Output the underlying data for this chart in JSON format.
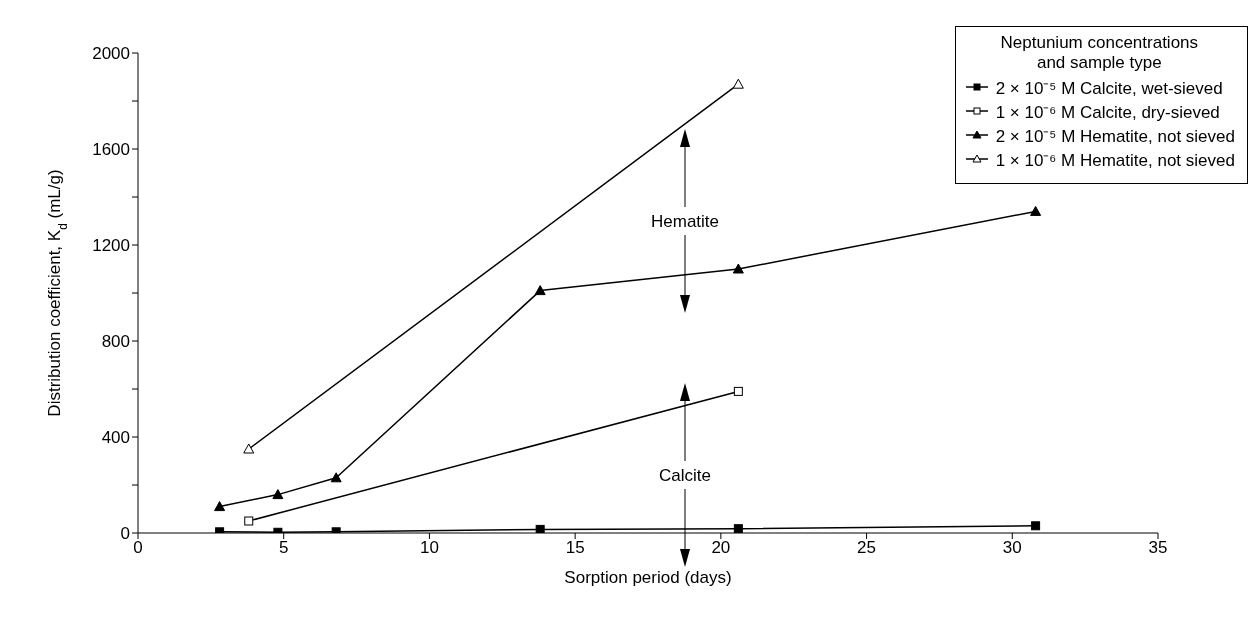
{
  "chart_data": {
    "type": "line",
    "xlabel": "Sorption period  (days)",
    "ylabel": "Distribution coefficient, K$_{d}$  (mL/g)",
    "legend_title": "Neptunium concentrations\nand sample type",
    "legend": "top right",
    "grid": false,
    "line_style": "solid",
    "xlim": [
      0,
      35
    ],
    "xticks": [
      0,
      5,
      10,
      15,
      20,
      25,
      30,
      35
    ],
    "ylim": [
      0,
      2000
    ],
    "yticks": [
      0,
      {
        "value": 200,
        "label": null
      },
      400,
      {
        "value": 600,
        "label": null
      },
      800,
      {
        "value": 1000,
        "label": null
      },
      1200,
      {
        "value": 1400,
        "label": null
      },
      1600,
      {
        "value": 1800,
        "label": null
      },
      2000
    ],
    "series": [
      {
        "name": "2 × 10⁻⁵ M  Calcite, wet-sieved",
        "color": "#000000",
        "marker": "square",
        "x": [
          2.8,
          4.8,
          6.8,
          13.8,
          20.6,
          30.8
        ],
        "values": [
          5,
          3,
          5,
          15,
          18,
          30
        ]
      },
      {
        "name": "1 × 10⁻⁶ M  Calcite, dry-sieved",
        "color": "#000000",
        "marker": "square",
        "x": [
          3.8,
          20.6
        ],
        "values": [
          50,
          590
        ]
      },
      {
        "name": "2 × 10⁻⁵ M  Hematite, not sieved",
        "color": "#000000",
        "marker": "triangle",
        "x": [
          2.8,
          4.8,
          6.8,
          13.8,
          20.6,
          30.8
        ],
        "values": [
          110,
          160,
          230,
          1010,
          1100,
          1340
        ]
      },
      {
        "name": "1 × 10⁻⁶ M  Hematite, not sieved",
        "color": "#000000",
        "marker": "triangle",
        "x": [
          3.8,
          20.6
        ],
        "values": [
          350,
          1870
        ]
      }
    ],
    "annotations": [
      "Hematite",
      "Calcite"
    ]
  }
}
